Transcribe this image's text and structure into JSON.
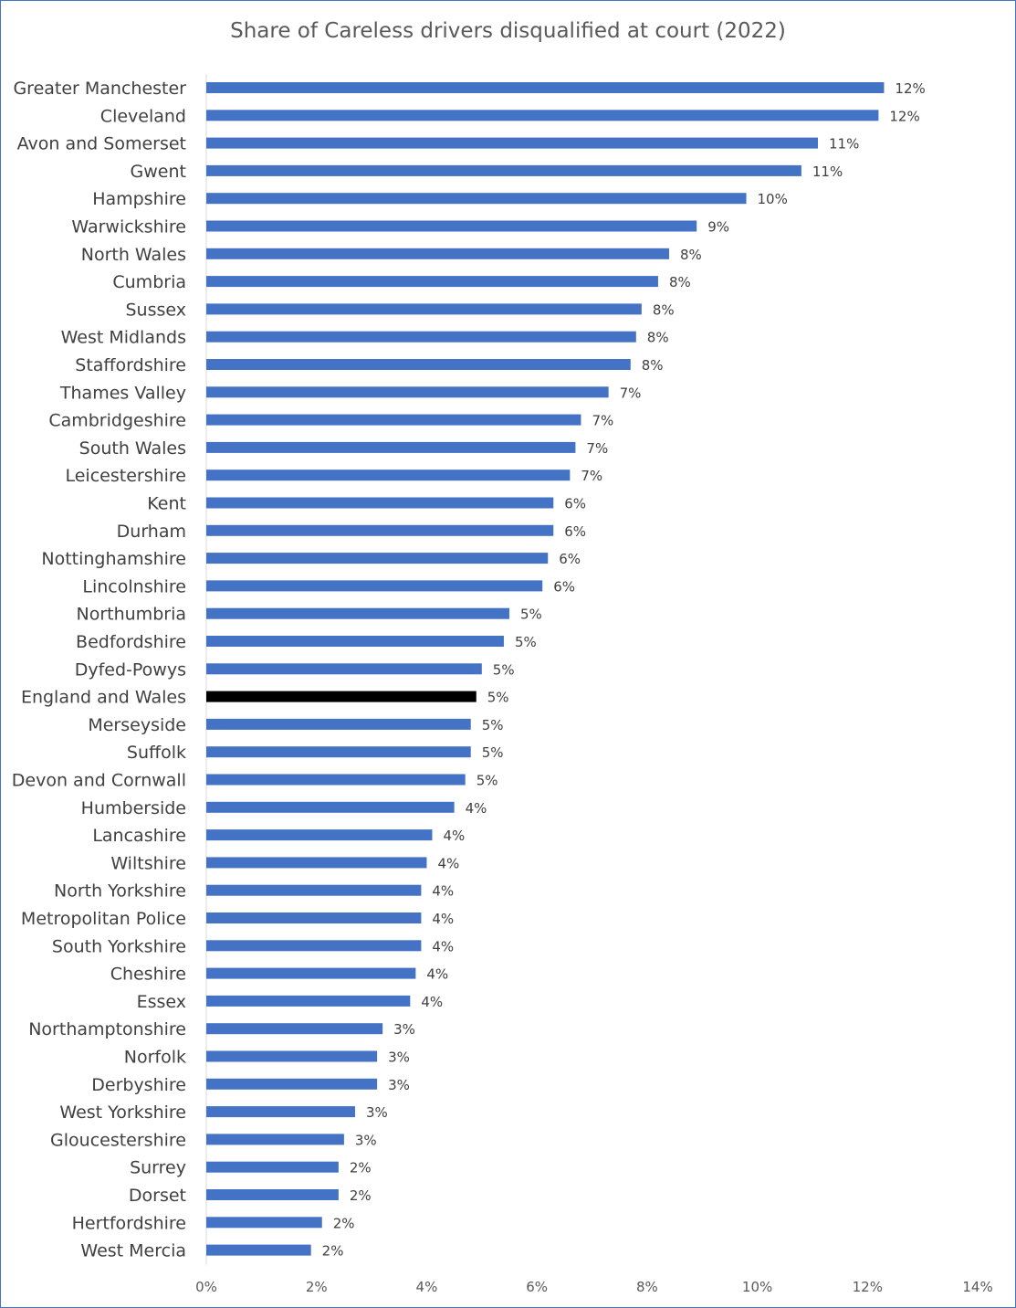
{
  "chart_data": {
    "type": "bar",
    "orientation": "horizontal",
    "title": "Share of Careless drivers disqualified at court (2022)",
    "xlabel": "",
    "ylabel": "",
    "xlim": [
      0,
      14
    ],
    "x_ticks": [
      "0%",
      "2%",
      "4%",
      "6%",
      "8%",
      "10%",
      "12%",
      "14%"
    ],
    "grid": false,
    "legend": "none",
    "colors": {
      "bar": "#4472c4",
      "highlight": "#000000"
    },
    "highlight_category": "England and Wales",
    "categories": [
      "Greater Manchester",
      "Cleveland",
      "Avon and Somerset",
      "Gwent",
      "Hampshire",
      "Warwickshire",
      "North Wales",
      "Cumbria",
      "Sussex",
      "West Midlands",
      "Staffordshire",
      "Thames Valley",
      "Cambridgeshire",
      "South Wales",
      "Leicestershire",
      "Kent",
      "Durham",
      "Nottinghamshire",
      "Lincolnshire",
      "Northumbria",
      "Bedfordshire",
      "Dyfed-Powys",
      "England and Wales",
      "Merseyside",
      "Suffolk",
      "Devon and Cornwall",
      "Humberside",
      "Lancashire",
      "Wiltshire",
      "North Yorkshire",
      "Metropolitan Police",
      "South Yorkshire",
      "Cheshire",
      "Essex",
      "Northamptonshire",
      "Norfolk",
      "Derbyshire",
      "West Yorkshire",
      "Gloucestershire",
      "Surrey",
      "Dorset",
      "Hertfordshire",
      "West Mercia"
    ],
    "values": [
      12.3,
      12.2,
      11.1,
      10.8,
      9.8,
      8.9,
      8.4,
      8.2,
      7.9,
      7.8,
      7.7,
      7.3,
      6.8,
      6.7,
      6.6,
      6.3,
      6.3,
      6.2,
      6.1,
      5.5,
      5.4,
      5.0,
      4.9,
      4.8,
      4.8,
      4.7,
      4.5,
      4.1,
      4.0,
      3.9,
      3.9,
      3.9,
      3.8,
      3.7,
      3.2,
      3.1,
      3.1,
      2.7,
      2.5,
      2.4,
      2.4,
      2.1,
      1.9
    ],
    "data_labels": [
      "12%",
      "12%",
      "11%",
      "11%",
      "10%",
      "9%",
      "8%",
      "8%",
      "8%",
      "8%",
      "8%",
      "7%",
      "7%",
      "7%",
      "7%",
      "6%",
      "6%",
      "6%",
      "6%",
      "5%",
      "5%",
      "5%",
      "5%",
      "5%",
      "5%",
      "5%",
      "4%",
      "4%",
      "4%",
      "4%",
      "4%",
      "4%",
      "4%",
      "4%",
      "3%",
      "3%",
      "3%",
      "3%",
      "3%",
      "2%",
      "2%",
      "2%",
      "2%"
    ]
  }
}
